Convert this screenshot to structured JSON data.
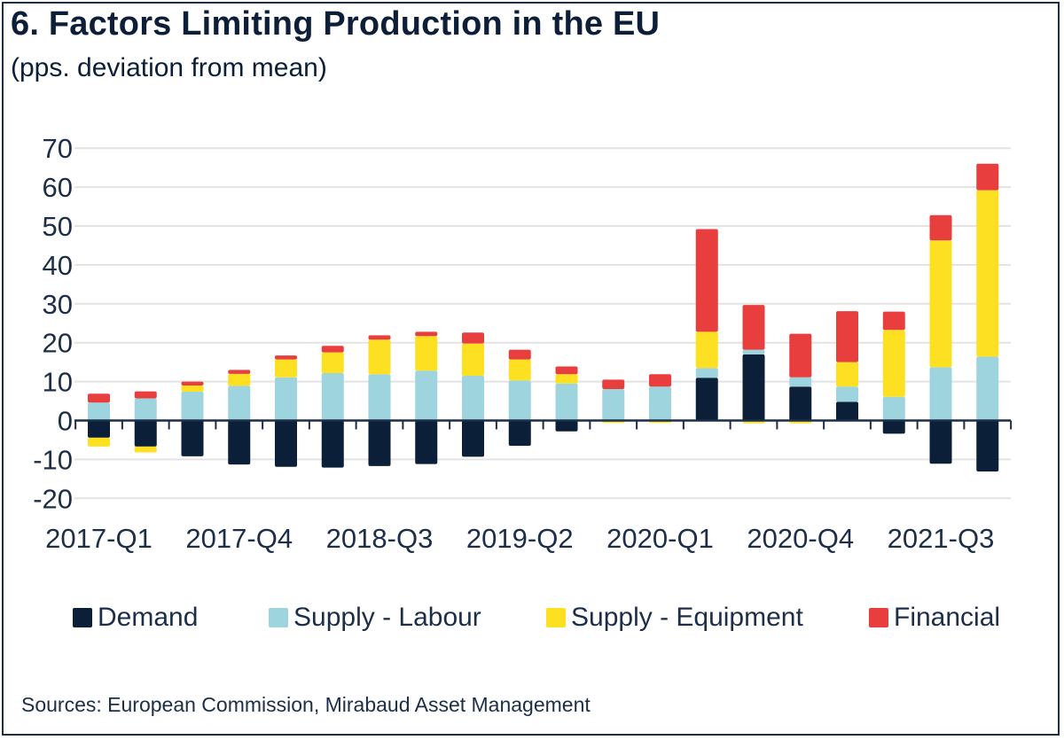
{
  "header": {
    "title": "6. Factors Limiting Production in the EU",
    "subtitle": "(pps. deviation from mean)"
  },
  "footer": {
    "source": "Sources: European Commission, Mirabaud Asset Management"
  },
  "colors": {
    "demand": "#0c1f38",
    "labour": "#9dd4de",
    "equipment": "#fde021",
    "financial": "#e83e3e",
    "axis": "#1c2e48",
    "grid": "#e3e3e3"
  },
  "chart_data": {
    "type": "bar",
    "stacked": true,
    "title": "6. Factors Limiting Production in the EU",
    "subtitle": "(pps. deviation from mean)",
    "xlabel": "",
    "ylabel": "",
    "ylim": [
      -20,
      70
    ],
    "yticks": [
      70,
      60,
      50,
      40,
      30,
      20,
      10,
      0,
      -10,
      -20
    ],
    "grid": true,
    "legend_position": "bottom",
    "categories": [
      "2017-Q1",
      "2017-Q2",
      "2017-Q3",
      "2017-Q4",
      "2018-Q1",
      "2018-Q2",
      "2018-Q3",
      "2018-Q4",
      "2019-Q1",
      "2019-Q2",
      "2019-Q3",
      "2019-Q4",
      "2020-Q1",
      "2020-Q2",
      "2020-Q3",
      "2020-Q4",
      "2021-Q1",
      "2021-Q2",
      "2021-Q3",
      "2021-Q4"
    ],
    "xtick_labels": [
      {
        "index": 0,
        "label": "2017-Q1"
      },
      {
        "index": 3,
        "label": "2017-Q4"
      },
      {
        "index": 6,
        "label": "2018-Q3"
      },
      {
        "index": 9,
        "label": "2019-Q2"
      },
      {
        "index": 12,
        "label": "2020-Q1"
      },
      {
        "index": 15,
        "label": "2020-Q4"
      },
      {
        "index": 18,
        "label": "2021-Q3"
      }
    ],
    "series": [
      {
        "name": "Demand",
        "key": "demand",
        "values": [
          -4.4,
          -6.7,
          -9.2,
          -11.3,
          -11.9,
          -12.1,
          -11.7,
          -11.2,
          -9.3,
          -6.5,
          -2.8,
          0.0,
          0.0,
          11.0,
          17.0,
          8.7,
          4.8,
          -3.4,
          -11.1,
          -13.1
        ]
      },
      {
        "name": "Supply - Labour",
        "key": "labour",
        "values": [
          4.6,
          5.7,
          7.4,
          8.9,
          11.1,
          12.2,
          11.9,
          12.8,
          11.5,
          10.3,
          9.5,
          8.1,
          8.7,
          2.5,
          1.2,
          2.4,
          3.9,
          6.1,
          13.7,
          16.4
        ]
      },
      {
        "name": "Supply - Equipment",
        "key": "equipment",
        "values": [
          -2.3,
          -1.5,
          1.6,
          3.1,
          4.6,
          5.3,
          8.9,
          8.9,
          8.3,
          5.4,
          2.4,
          -0.6,
          -0.6,
          9.3,
          -0.7,
          -0.7,
          6.3,
          17.2,
          32.6,
          42.8
        ]
      },
      {
        "name": "Financial",
        "key": "financial",
        "values": [
          2.3,
          1.8,
          1.0,
          1.0,
          1.0,
          1.7,
          1.1,
          1.1,
          2.8,
          2.5,
          2.0,
          2.4,
          3.2,
          26.4,
          11.5,
          11.2,
          13.1,
          4.7,
          6.5,
          6.8
        ]
      }
    ]
  }
}
